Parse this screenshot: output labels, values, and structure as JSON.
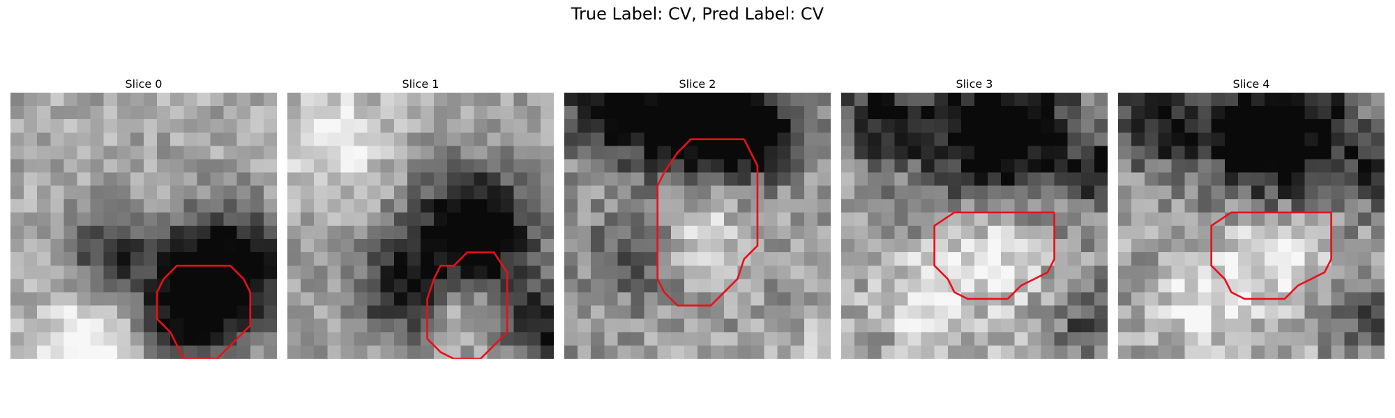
{
  "suptitle": "True Label: CV, Pred Label: CV",
  "colors": {
    "contour": "#e8101a",
    "colormap": "gray"
  },
  "panels": [
    {
      "title": "Slice 0",
      "contour": [
        [
          14.0,
          4.5
        ],
        [
          12.0,
          4.5
        ],
        [
          11.0,
          5.5
        ],
        [
          10.5,
          6.5
        ],
        [
          10.5,
          8.5
        ],
        [
          11.5,
          9.5
        ],
        [
          12.0,
          10.5
        ],
        [
          12.5,
          11.5
        ],
        [
          15.0,
          11.5
        ],
        [
          16.0,
          10.5
        ],
        [
          17.5,
          9.0
        ],
        [
          17.5,
          6.5
        ],
        [
          17.0,
          5.5
        ],
        [
          16.0,
          4.5
        ]
      ],
      "pattern": {
        "blobs": [
          [
            15.5,
            5.0,
            4.5,
            -0.9
          ],
          [
            12.5,
            8.5,
            3.5,
            -0.5
          ],
          [
            11.0,
            20.0,
            4.0,
            0.55
          ],
          [
            5.5,
            11.0,
            3.5,
            0.45
          ],
          [
            7.0,
            3.5,
            3.0,
            -0.45
          ],
          [
            19.0,
            17.5,
            3.0,
            -0.55
          ],
          [
            6.0,
            21.0,
            3.5,
            0.3
          ]
        ],
        "base": 0.66,
        "noise": 0.14
      }
    },
    {
      "title": "Slice 1",
      "contour": [
        [
          14.0,
          3.5
        ],
        [
          13.0,
          3.5
        ],
        [
          12.0,
          4.5
        ],
        [
          11.0,
          4.5
        ],
        [
          10.5,
          5.5
        ],
        [
          10.0,
          7.0
        ],
        [
          10.0,
          10.0
        ],
        [
          11.0,
          11.0
        ],
        [
          12.0,
          11.5
        ],
        [
          14.0,
          11.5
        ],
        [
          15.0,
          10.5
        ],
        [
          16.0,
          9.5
        ],
        [
          16.0,
          5.0
        ],
        [
          15.0,
          3.5
        ]
      ],
      "pattern": {
        "blobs": [
          [
            13.5,
            2.0,
            4.5,
            -0.85
          ],
          [
            8.0,
            6.5,
            3.5,
            -0.5
          ],
          [
            19.0,
            9.0,
            3.0,
            -0.55
          ],
          [
            12.5,
            7.5,
            2.5,
            0.25
          ],
          [
            11.0,
            21.0,
            3.5,
            0.35
          ],
          [
            3.0,
            -5.0,
            4.0,
            0.3
          ],
          [
            9.0,
            17.0,
            2.5,
            -0.35
          ]
        ],
        "base": 0.64,
        "noise": 0.14
      }
    },
    {
      "title": "Slice 2",
      "contour": [
        [
          13.0,
          -1.0
        ],
        [
          9.0,
          -1.0
        ],
        [
          8.0,
          0.0
        ],
        [
          7.0,
          1.5
        ],
        [
          6.5,
          2.5
        ],
        [
          6.5,
          3.5
        ],
        [
          6.5,
          9.5
        ],
        [
          7.0,
          10.5
        ],
        [
          8.0,
          11.5
        ],
        [
          10.5,
          11.5
        ],
        [
          11.5,
          10.5
        ],
        [
          12.5,
          9.5
        ],
        [
          13.0,
          8.0
        ],
        [
          14.0,
          7.0
        ],
        [
          14.0,
          1.0
        ]
      ],
      "pattern": {
        "blobs": [
          [
            10.0,
            -2.5,
            5.0,
            -0.85
          ],
          [
            3.0,
            -3.5,
            3.5,
            -0.6
          ],
          [
            9.5,
            5.5,
            4.0,
            0.3
          ],
          [
            5.0,
            7.5,
            3.5,
            -0.3
          ],
          [
            10.0,
            21.0,
            4.0,
            0.45
          ],
          [
            18.5,
            16.0,
            2.5,
            0.35
          ],
          [
            15.0,
            -1.0,
            2.5,
            -0.45
          ]
        ],
        "base": 0.6,
        "noise": 0.17
      }
    },
    {
      "title": "Slice 3",
      "contour": [
        [
          15.5,
          4.5
        ],
        [
          8.0,
          4.5
        ],
        [
          6.5,
          5.5
        ],
        [
          6.5,
          8.5
        ],
        [
          7.5,
          9.5
        ],
        [
          8.0,
          10.5
        ],
        [
          9.0,
          11.0
        ],
        [
          12.0,
          11.0
        ],
        [
          13.0,
          10.0
        ],
        [
          14.0,
          9.5
        ],
        [
          15.0,
          9.0
        ],
        [
          15.5,
          8.0
        ],
        [
          15.5,
          5.5
        ]
      ],
      "pattern": {
        "blobs": [
          [
            11.5,
            -1.5,
            5.5,
            -0.85
          ],
          [
            2.5,
            -2.5,
            3.5,
            -0.5
          ],
          [
            11.0,
            7.5,
            4.0,
            0.35
          ],
          [
            5.5,
            11.0,
            3.0,
            0.3
          ],
          [
            10.5,
            20.0,
            4.0,
            0.3
          ],
          [
            18.5,
            12.5,
            3.0,
            -0.35
          ],
          [
            19.5,
            1.5,
            2.5,
            -0.5
          ]
        ],
        "base": 0.62,
        "noise": 0.19
      }
    },
    {
      "title": "Slice 4",
      "contour": [
        [
          15.5,
          4.5
        ],
        [
          8.0,
          4.5
        ],
        [
          6.5,
          5.5
        ],
        [
          6.5,
          8.5
        ],
        [
          7.5,
          9.5
        ],
        [
          8.0,
          10.5
        ],
        [
          9.0,
          11.0
        ],
        [
          12.0,
          11.0
        ],
        [
          13.0,
          10.0
        ],
        [
          14.0,
          9.5
        ],
        [
          15.0,
          9.0
        ],
        [
          15.5,
          8.0
        ],
        [
          15.5,
          5.5
        ]
      ],
      "pattern": {
        "blobs": [
          [
            11.5,
            -1.5,
            5.5,
            -0.85
          ],
          [
            2.5,
            -2.5,
            3.5,
            -0.5
          ],
          [
            11.0,
            7.5,
            4.0,
            0.35
          ],
          [
            5.5,
            11.0,
            3.0,
            0.3
          ],
          [
            10.5,
            20.0,
            4.0,
            0.3
          ],
          [
            18.5,
            12.5,
            3.0,
            -0.35
          ],
          [
            19.5,
            1.5,
            2.5,
            -0.5
          ]
        ],
        "base": 0.62,
        "noise": 0.19
      }
    }
  ]
}
